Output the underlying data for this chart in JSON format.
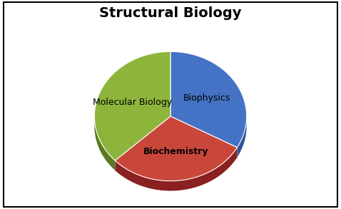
{
  "title": "Structural Biology",
  "slices": [
    "Biophysics",
    "Biochemistry",
    "Molecular Biology"
  ],
  "values": [
    33,
    30,
    37
  ],
  "colors": [
    "#4472C4",
    "#C9473A",
    "#8DB53C"
  ],
  "dark_colors": [
    "#2F5496",
    "#8B2020",
    "#5A7A20"
  ],
  "startangle": 90,
  "title_fontsize": 14,
  "label_fontsize": 9,
  "background_color": "#FFFFFF"
}
